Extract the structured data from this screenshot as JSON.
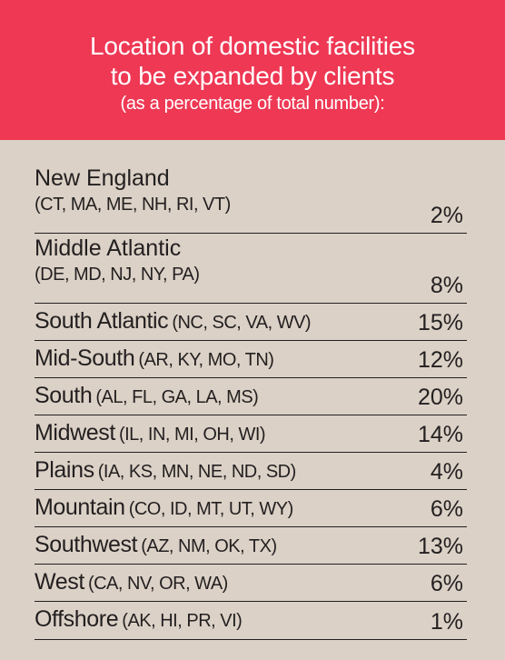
{
  "chart_data": {
    "type": "table",
    "title": "Location of domestic facilities",
    "title_line2": "to be expanded by clients",
    "subtitle": "(as a percentage of total number):",
    "colors": {
      "header_bg": "#ee3854",
      "body_bg": "#dbd1c6",
      "text": "#231f20"
    },
    "rows": [
      {
        "region": "New England",
        "states": "(CT, MA, ME, NH, RI, VT)",
        "value": "2%"
      },
      {
        "region": "Middle Atlantic",
        "states": "(DE, MD, NJ, NY, PA)",
        "value": "8%"
      },
      {
        "region": "South Atlantic",
        "states": "(NC, SC, VA, WV)",
        "value": "15%"
      },
      {
        "region": "Mid-South",
        "states": "(AR, KY, MO, TN)",
        "value": "12%"
      },
      {
        "region": "South",
        "states": "(AL, FL, GA, LA, MS)",
        "value": "20%"
      },
      {
        "region": "Midwest",
        "states": "(IL, IN, MI, OH, WI)",
        "value": "14%"
      },
      {
        "region": "Plains",
        "states": "(IA, KS, MN, NE, ND, SD)",
        "value": "4%"
      },
      {
        "region": "Mountain",
        "states": "(CO, ID, MT, UT, WY)",
        "value": "6%"
      },
      {
        "region": "Southwest",
        "states": "(AZ, NM, OK, TX)",
        "value": "13%"
      },
      {
        "region": "West",
        "states": "(CA, NV, OR, WA)",
        "value": "6%"
      },
      {
        "region": "Offshore",
        "states": "(AK, HI, PR, VI)",
        "value": "1%"
      }
    ]
  }
}
